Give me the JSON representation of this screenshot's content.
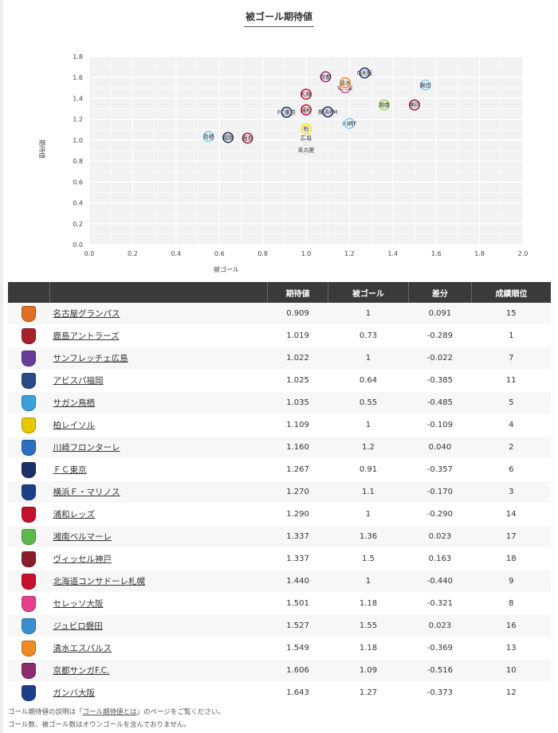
{
  "title": "被ゴール期待値",
  "chart_data": {
    "type": "scatter",
    "title": "被ゴール期待値",
    "xlabel": "被ゴール",
    "ylabel": "期待値",
    "xlim": [
      0,
      2.0
    ],
    "ylim": [
      0,
      1.8
    ],
    "x_ticks": [
      "0.0",
      "0.2",
      "0.4",
      "0.6",
      "0.8",
      "1.0",
      "1.2",
      "1.4",
      "1.6",
      "1.8",
      "2.0"
    ],
    "y_ticks": [
      "0.0",
      "0.2",
      "0.4",
      "0.6",
      "0.8",
      "1.0",
      "1.2",
      "1.4",
      "1.6",
      "1.8"
    ],
    "grid": true,
    "points": [
      {
        "label": "名古屋",
        "x": 1,
        "y": 0.909,
        "color": "#d9d9d9"
      },
      {
        "label": "鹿島",
        "x": 0.73,
        "y": 1.019,
        "color": "#a8222c"
      },
      {
        "label": "広島",
        "x": 1,
        "y": 1.022,
        "color": "#d9d9d9"
      },
      {
        "label": "福岡",
        "x": 0.64,
        "y": 1.025,
        "color": "#1d3557"
      },
      {
        "label": "鳥栖",
        "x": 0.55,
        "y": 1.035,
        "color": "#6ec6e6"
      },
      {
        "label": "柏",
        "x": 1,
        "y": 1.109,
        "color": "#f5d800"
      },
      {
        "label": "川崎F",
        "x": 1.2,
        "y": 1.16,
        "color": "#7ec8f0"
      },
      {
        "label": "FC東京",
        "x": 0.91,
        "y": 1.267,
        "color": "#1c2f6b"
      },
      {
        "label": "横浜FM",
        "x": 1.1,
        "y": 1.27,
        "color": "#1c2f6b"
      },
      {
        "label": "浦和",
        "x": 1,
        "y": 1.29,
        "color": "#c8102e"
      },
      {
        "label": "湘南",
        "x": 1.36,
        "y": 1.337,
        "color": "#8bd14a"
      },
      {
        "label": "神戸",
        "x": 1.5,
        "y": 1.337,
        "color": "#8b1a2b"
      },
      {
        "label": "札幌",
        "x": 1,
        "y": 1.44,
        "color": "#c8102e"
      },
      {
        "label": "C大阪",
        "x": 1.18,
        "y": 1.501,
        "color": "#e83f8a"
      },
      {
        "label": "磐田",
        "x": 1.55,
        "y": 1.527,
        "color": "#7ec8f0"
      },
      {
        "label": "清水",
        "x": 1.18,
        "y": 1.549,
        "color": "#f08a24"
      },
      {
        "label": "京都",
        "x": 1.09,
        "y": 1.606,
        "color": "#8a2c6e"
      },
      {
        "label": "G大阪",
        "x": 1.27,
        "y": 1.643,
        "color": "#1c2f6b"
      }
    ]
  },
  "table": {
    "headers": [
      "",
      "",
      "期待値",
      "被ゴール",
      "差分",
      "成績順位"
    ],
    "rows": [
      {
        "team": "名古屋グランパス",
        "crest": "#e07020",
        "exp": "0.909",
        "ga": "1",
        "diff": "0.091",
        "rank": "15"
      },
      {
        "team": "鹿島アントラーズ",
        "crest": "#a8222c",
        "exp": "1.019",
        "ga": "0.73",
        "diff": "-0.289",
        "rank": "1"
      },
      {
        "team": "サンフレッチェ広島",
        "crest": "#6a3d9a",
        "exp": "1.022",
        "ga": "1",
        "diff": "-0.022",
        "rank": "7"
      },
      {
        "team": "アビスパ福岡",
        "crest": "#2a4a8a",
        "exp": "1.025",
        "ga": "0.64",
        "diff": "-0.385",
        "rank": "11"
      },
      {
        "team": "サガン鳥栖",
        "crest": "#3aa0d8",
        "exp": "1.035",
        "ga": "0.55",
        "diff": "-0.485",
        "rank": "5"
      },
      {
        "team": "柏レイソル",
        "crest": "#e8c800",
        "exp": "1.109",
        "ga": "1",
        "diff": "-0.109",
        "rank": "4"
      },
      {
        "team": "川崎フロンターレ",
        "crest": "#2a6fc0",
        "exp": "1.160",
        "ga": "1.2",
        "diff": "0.040",
        "rank": "2"
      },
      {
        "team": "ＦＣ東京",
        "crest": "#1c2f6b",
        "exp": "1.267",
        "ga": "0.91",
        "diff": "-0.357",
        "rank": "6"
      },
      {
        "team": "横浜Ｆ・マリノス",
        "crest": "#1c3f8a",
        "exp": "1.270",
        "ga": "1.1",
        "diff": "-0.170",
        "rank": "3"
      },
      {
        "team": "浦和レッズ",
        "crest": "#c8102e",
        "exp": "1.290",
        "ga": "1",
        "diff": "-0.290",
        "rank": "14"
      },
      {
        "team": "湘南ベルマーレ",
        "crest": "#5fb84a",
        "exp": "1.337",
        "ga": "1.36",
        "diff": "0.023",
        "rank": "17"
      },
      {
        "team": "ヴィッセル神戸",
        "crest": "#8b1a2b",
        "exp": "1.337",
        "ga": "1.5",
        "diff": "0.163",
        "rank": "18"
      },
      {
        "team": "北海道コンサドーレ札幌",
        "crest": "#c8102e",
        "exp": "1.440",
        "ga": "1",
        "diff": "-0.440",
        "rank": "9"
      },
      {
        "team": "セレッソ大阪",
        "crest": "#e83f8a",
        "exp": "1.501",
        "ga": "1.18",
        "diff": "-0.321",
        "rank": "8"
      },
      {
        "team": "ジュビロ磐田",
        "crest": "#3a8fd0",
        "exp": "1.527",
        "ga": "1.55",
        "diff": "0.023",
        "rank": "16"
      },
      {
        "team": "清水エスパルス",
        "crest": "#f08a24",
        "exp": "1.549",
        "ga": "1.18",
        "diff": "-0.369",
        "rank": "13"
      },
      {
        "team": "京都サンガF.C.",
        "crest": "#8a2c6e",
        "exp": "1.606",
        "ga": "1.09",
        "diff": "-0.516",
        "rank": "10"
      },
      {
        "team": "ガンバ大阪",
        "crest": "#1c3f8a",
        "exp": "1.643",
        "ga": "1.27",
        "diff": "-0.373",
        "rank": "12"
      }
    ]
  },
  "notes": {
    "line1_prefix": "ゴール期待値の説明は「",
    "line1_link": "ゴール期待値とは",
    "line1_suffix": "」のページをご覧ください。",
    "line2": "ゴール数、被ゴール数はオウンゴールを含んでおりません。"
  }
}
